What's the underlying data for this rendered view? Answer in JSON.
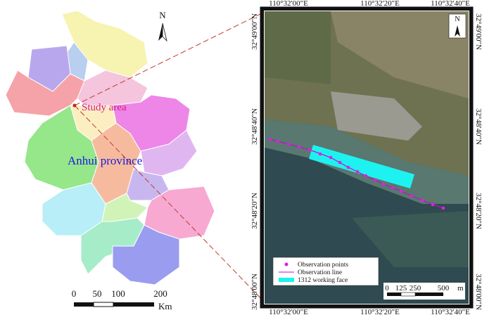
{
  "left_map": {
    "north": "N",
    "study_area": "Study area",
    "province": "Anhui province",
    "scale": {
      "ticks": [
        "0",
        "50",
        "100",
        "200"
      ],
      "unit": "Km"
    }
  },
  "right_map": {
    "north": "N",
    "top_ticks": [
      "110°32'00\"E",
      "110°32'20\"E",
      "110°32'40\"E"
    ],
    "bottom_ticks": [
      "110°32'00\"E",
      "110°32'20\"E",
      "110°32'40\"E"
    ],
    "left_ticks": [
      "32°49'00\"N",
      "32°48'40\"N",
      "32°48'20\"N",
      "32°48'00\"N"
    ],
    "right_ticks": [
      "32°49'00\"N",
      "32°48'40\"N",
      "32°48'20\"N",
      "32°48'00\"N"
    ],
    "legend": [
      "Observation points",
      "Observation line",
      "1312 working face"
    ],
    "scale": {
      "ticks": [
        "0",
        "125",
        "250",
        "500"
      ],
      "unit": "m"
    }
  }
}
